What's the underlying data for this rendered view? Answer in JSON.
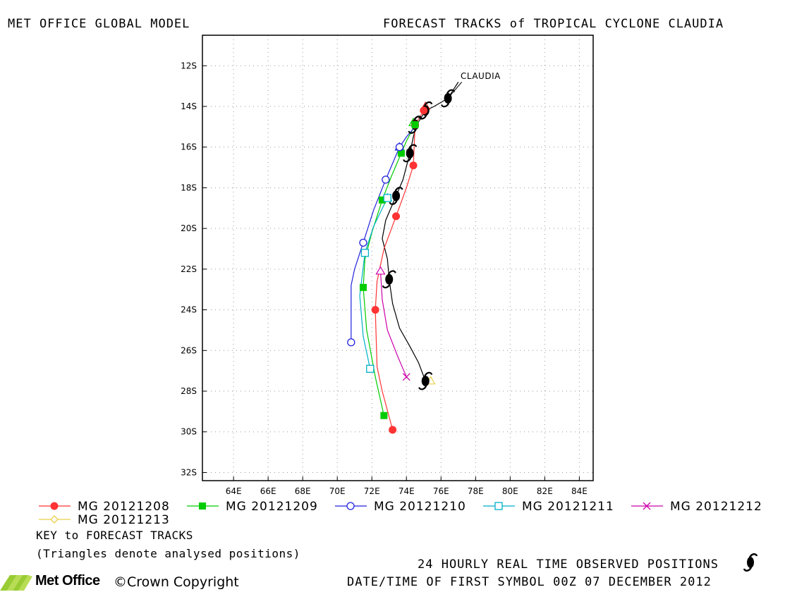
{
  "header": {
    "left_title": "MET OFFICE GLOBAL MODEL",
    "right_title": "FORECAST TRACKS of TROPICAL CYCLONE CLAUDIA"
  },
  "chart_data": {
    "type": "scatter",
    "title": "FORECAST TRACKS of TROPICAL CYCLONE CLAUDIA",
    "xlabel": "",
    "ylabel": "",
    "xlim": [
      62.2,
      84.8
    ],
    "ylim": [
      -32.4,
      -10.5
    ],
    "grid": true,
    "legend_position": "bottom",
    "x_ticks": [
      64,
      66,
      68,
      70,
      72,
      74,
      76,
      78,
      80,
      82,
      84
    ],
    "x_tick_labels": [
      "64E",
      "66E",
      "68E",
      "70E",
      "72E",
      "74E",
      "76E",
      "78E",
      "80E",
      "82E",
      "84E"
    ],
    "y_ticks": [
      -12,
      -14,
      -16,
      -18,
      -20,
      -22,
      -24,
      -26,
      -28,
      -30,
      -32
    ],
    "y_tick_labels": [
      "12S",
      "14S",
      "16S",
      "18S",
      "20S",
      "22S",
      "24S",
      "26S",
      "28S",
      "30S",
      "32S"
    ],
    "storm_label": "CLAUDIA",
    "observed": {
      "name": "24 HOURLY REAL TIME OBSERVED POSITIONS",
      "color": "#000000",
      "track": [
        [
          77.0,
          -12.8
        ],
        [
          76.4,
          -13.6
        ],
        [
          75.6,
          -14.0
        ],
        [
          75.1,
          -14.2
        ],
        [
          74.6,
          -14.9
        ],
        [
          74.4,
          -15.5
        ],
        [
          74.2,
          -16.3
        ],
        [
          73.8,
          -17.6
        ],
        [
          73.4,
          -18.4
        ],
        [
          72.8,
          -19.6
        ],
        [
          72.6,
          -20.5
        ],
        [
          72.9,
          -21.5
        ],
        [
          73.0,
          -22.5
        ],
        [
          73.2,
          -23.7
        ],
        [
          73.6,
          -24.9
        ],
        [
          74.2,
          -25.8
        ],
        [
          74.7,
          -26.6
        ],
        [
          75.1,
          -27.5
        ]
      ],
      "symbols": [
        [
          76.4,
          -13.6
        ],
        [
          75.1,
          -14.2
        ],
        [
          74.5,
          -14.9
        ],
        [
          74.2,
          -16.3
        ],
        [
          73.4,
          -18.4
        ],
        [
          73.0,
          -22.5
        ],
        [
          75.1,
          -27.5
        ]
      ]
    },
    "series": [
      {
        "name": "MG 20121208",
        "color": "#ff3333",
        "marker": "filled-circle",
        "x": [
          75.0,
          74.5,
          74.4,
          73.4,
          72.2,
          73.2
        ],
        "y": [
          -14.2,
          -14.9,
          -16.9,
          -19.4,
          -24.0,
          -29.9
        ],
        "path": [
          [
            75.0,
            -14.2
          ],
          [
            74.5,
            -14.9
          ],
          [
            74.4,
            -16.9
          ],
          [
            74.0,
            -18.0
          ],
          [
            73.4,
            -19.4
          ],
          [
            72.7,
            -21.0
          ],
          [
            72.3,
            -22.6
          ],
          [
            72.2,
            -24.0
          ],
          [
            72.3,
            -26.8
          ],
          [
            72.6,
            -28.0
          ],
          [
            73.2,
            -29.9
          ]
        ]
      },
      {
        "name": "MG 20121209",
        "color": "#00cc00",
        "marker": "filled-square",
        "x": [
          74.5,
          73.7,
          72.6,
          71.5,
          72.7
        ],
        "y": [
          -14.9,
          -16.3,
          -18.6,
          -22.9,
          -29.2
        ],
        "path": [
          [
            74.5,
            -14.9
          ],
          [
            74.0,
            -15.7
          ],
          [
            73.7,
            -16.3
          ],
          [
            73.1,
            -17.5
          ],
          [
            72.6,
            -18.6
          ],
          [
            72.0,
            -20.2
          ],
          [
            71.6,
            -21.5
          ],
          [
            71.5,
            -22.9
          ],
          [
            71.7,
            -25.0
          ],
          [
            72.2,
            -27.3
          ],
          [
            72.7,
            -29.2
          ]
        ]
      },
      {
        "name": "MG 20121210",
        "color": "#2222dd",
        "marker": "open-circle",
        "x": [
          73.6,
          72.8,
          71.5,
          70.8
        ],
        "y": [
          -16.0,
          -17.6,
          -20.7,
          -25.6
        ],
        "path": [
          [
            74.6,
            -14.9
          ],
          [
            74.0,
            -15.5
          ],
          [
            73.6,
            -16.0
          ],
          [
            72.8,
            -17.6
          ],
          [
            72.1,
            -19.1
          ],
          [
            71.5,
            -20.7
          ],
          [
            71.0,
            -22.0
          ],
          [
            70.8,
            -22.8
          ],
          [
            70.8,
            -25.6
          ]
        ]
      },
      {
        "name": "MG 20121211",
        "color": "#00b0c8",
        "marker": "open-square",
        "x": [
          72.9,
          71.6,
          71.9
        ],
        "y": [
          -18.5,
          -21.2,
          -26.9
        ],
        "path": [
          [
            72.9,
            -18.5
          ],
          [
            72.1,
            -19.9
          ],
          [
            71.6,
            -21.2
          ],
          [
            71.3,
            -23.3
          ],
          [
            71.5,
            -25.3
          ],
          [
            71.9,
            -26.9
          ]
        ]
      },
      {
        "name": "MG 20121212",
        "color": "#cc00aa",
        "marker": "x",
        "x": [
          74.0
        ],
        "y": [
          -27.3
        ],
        "path": [
          [
            72.5,
            -22.1
          ],
          [
            72.6,
            -23.5
          ],
          [
            72.9,
            -25.0
          ],
          [
            73.5,
            -26.3
          ],
          [
            74.0,
            -27.3
          ]
        ]
      },
      {
        "name": "MG 20121213",
        "color": "#e8d04a",
        "marker": "diamond",
        "x": [],
        "y": [],
        "path": []
      }
    ],
    "analysed_positions": [
      {
        "series": 0,
        "color": "#ff3333",
        "x": 75.1,
        "y": -14.0
      },
      {
        "series": 1,
        "color": "#00cc00",
        "x": 74.4,
        "y": -14.8
      },
      {
        "series": 2,
        "color": "#2222dd",
        "x": 73.6,
        "y": -16.0
      },
      {
        "series": 3,
        "color": "#00b0c8",
        "x": 72.9,
        "y": -18.5
      },
      {
        "series": 4,
        "color": "#cc00aa",
        "x": 72.5,
        "y": -22.1
      },
      {
        "series": 5,
        "color": "#e8d04a",
        "x": 75.4,
        "y": -27.5
      }
    ]
  },
  "legend": {
    "key_title": "KEY to FORECAST TRACKS",
    "note": "(Triangles denote analysed positions)"
  },
  "footer": {
    "observed_label": "24 HOURLY REAL TIME OBSERVED POSITIONS",
    "datetime": "DATE/TIME OF FIRST SYMBOL 00Z 07 DECEMBER 2012",
    "brand": "Met Office",
    "copyright": "Crown Copyright"
  },
  "colors": {
    "grid": "#999999",
    "observed_track": "#000000",
    "logo_green": "#99cc33"
  }
}
